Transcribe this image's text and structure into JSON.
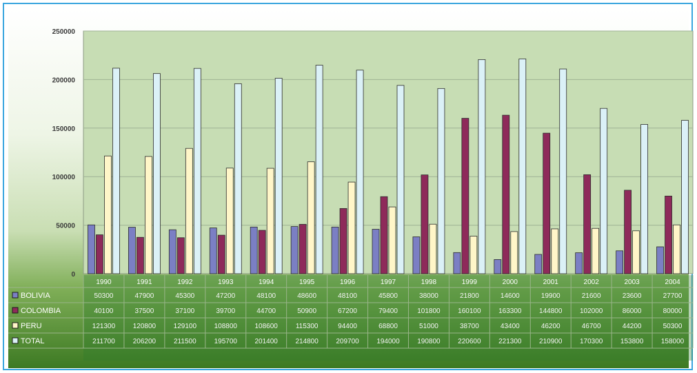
{
  "chart_data": {
    "type": "bar",
    "title": "",
    "xlabel": "",
    "ylabel": "",
    "ylim": [
      0,
      250000
    ],
    "yticks": [
      0,
      50000,
      100000,
      150000,
      200000,
      250000
    ],
    "grid": true,
    "legend": "data-table-left",
    "categories": [
      "1990",
      "1991",
      "1992",
      "1993",
      "1994",
      "1995",
      "1996",
      "1997",
      "1998",
      "1999",
      "2000",
      "2001",
      "2002",
      "2003",
      "2004"
    ],
    "series": [
      {
        "name": "BOLIVIA",
        "color": "#7b7fc4",
        "values": [
          50300,
          47900,
          45300,
          47200,
          48100,
          48600,
          48100,
          45800,
          38000,
          21800,
          14600,
          19900,
          21600,
          23600,
          27700
        ]
      },
      {
        "name": "COLOMBIA",
        "color": "#8e2a5a",
        "values": [
          40100,
          37500,
          37100,
          39700,
          44700,
          50900,
          67200,
          79400,
          101800,
          160100,
          163300,
          144800,
          102000,
          86000,
          80000
        ]
      },
      {
        "name": "PERU",
        "color": "#fff6c8",
        "values": [
          121300,
          120800,
          129100,
          108800,
          108600,
          115300,
          94400,
          68800,
          51000,
          38700,
          43400,
          46200,
          46700,
          44200,
          50300
        ]
      },
      {
        "name": "TOTAL",
        "color": "#dbf1f7",
        "values": [
          211700,
          206200,
          211500,
          195700,
          201400,
          214800,
          209700,
          194000,
          190800,
          220600,
          221300,
          210900,
          170300,
          153800,
          158000
        ]
      }
    ]
  }
}
